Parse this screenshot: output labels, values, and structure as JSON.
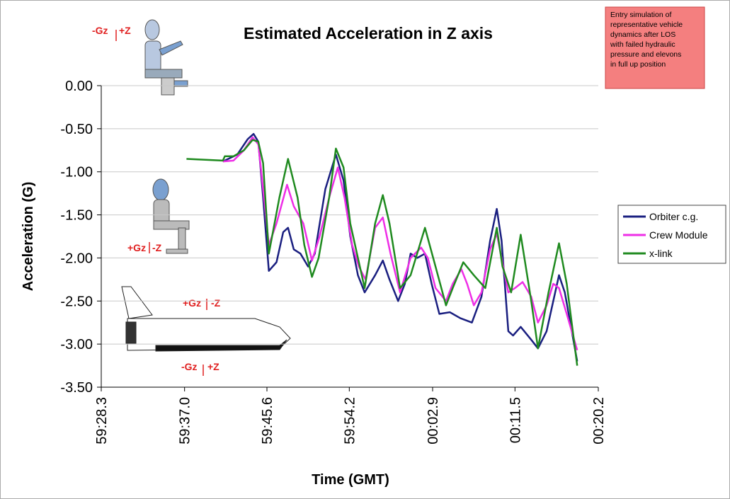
{
  "chart_data": {
    "type": "line",
    "title": "Estimated Acceleration in Z axis",
    "x_label": "Time (GMT)",
    "y_label": "Acceleration (G)",
    "xlim": [
      28.3,
      80.2
    ],
    "xticks": [
      {
        "value": 28.3,
        "label": "59:28.3"
      },
      {
        "value": 37.0,
        "label": "59:37.0"
      },
      {
        "value": 45.6,
        "label": "59:45.6"
      },
      {
        "value": 54.2,
        "label": "59:54.2"
      },
      {
        "value": 62.9,
        "label": "00:02.9"
      },
      {
        "value": 71.5,
        "label": "00:11.5"
      },
      {
        "value": 80.2,
        "label": "00:20.2"
      }
    ],
    "ylim": [
      -3.5,
      0
    ],
    "yticks": [
      {
        "value": 0,
        "label": "0.00"
      },
      {
        "value": -0.5,
        "label": "-0.50"
      },
      {
        "value": -1,
        "label": "-1.00"
      },
      {
        "value": -1.5,
        "label": "-1.50"
      },
      {
        "value": -2,
        "label": "-2.00"
      },
      {
        "value": -2.5,
        "label": "-2.50"
      },
      {
        "value": -3,
        "label": "-3.00"
      },
      {
        "value": -3.5,
        "label": "-3.50"
      }
    ],
    "grid": true,
    "legend": "right",
    "series": [
      {
        "name": "Orbiter c.g.",
        "color": "#1a1f80",
        "x": [
          41.0,
          42.5,
          43.6,
          44.2,
          44.7,
          45.2,
          45.8,
          46.6,
          47.3,
          47.8,
          48.4,
          49.1,
          49.9,
          50.6,
          51.7,
          52.8,
          53.6,
          54.3,
          55.1,
          55.8,
          56.9,
          57.7,
          58.4,
          59.3,
          60.0,
          60.6,
          61.3,
          62.1,
          62.8,
          63.6,
          64.7,
          65.8,
          67.0,
          68.0,
          68.9,
          69.6,
          70.1,
          70.8,
          71.3,
          72.1,
          73.2,
          73.9,
          74.8,
          75.5,
          76.1,
          76.7,
          78.0
        ],
        "values": [
          -0.88,
          -0.8,
          -0.62,
          -0.56,
          -0.65,
          -1.3,
          -2.15,
          -2.05,
          -1.7,
          -1.65,
          -1.9,
          -1.95,
          -2.1,
          -1.95,
          -1.2,
          -0.8,
          -1.1,
          -1.75,
          -2.2,
          -2.4,
          -2.2,
          -2.03,
          -2.25,
          -2.5,
          -2.3,
          -1.95,
          -2.0,
          -1.95,
          -2.3,
          -2.65,
          -2.63,
          -2.7,
          -2.75,
          -2.45,
          -1.8,
          -1.43,
          -1.8,
          -2.85,
          -2.9,
          -2.8,
          -2.95,
          -3.05,
          -2.85,
          -2.5,
          -2.2,
          -2.4,
          -3.2
        ]
      },
      {
        "name": "Crew Module",
        "color": "#ee2ee6",
        "x": [
          41.0,
          42.1,
          43.2,
          44.1,
          44.7,
          45.2,
          45.8,
          46.6,
          47.7,
          48.4,
          49.4,
          50.3,
          51.1,
          52.1,
          53.0,
          53.7,
          54.5,
          55.2,
          55.9,
          56.9,
          57.7,
          58.5,
          59.5,
          60.6,
          61.7,
          62.4,
          63.2,
          64.3,
          65.0,
          65.9,
          66.5,
          67.2,
          68.0,
          68.9,
          69.6,
          70.1,
          70.8,
          71.5,
          72.3,
          73.2,
          73.9,
          74.8,
          75.5,
          76.1,
          76.9,
          78.0
        ],
        "values": [
          -0.88,
          -0.87,
          -0.75,
          -0.6,
          -0.68,
          -1.2,
          -1.85,
          -1.6,
          -1.15,
          -1.4,
          -1.6,
          -2.03,
          -1.75,
          -1.3,
          -0.95,
          -1.3,
          -1.85,
          -2.1,
          -2.25,
          -1.65,
          -1.53,
          -1.95,
          -2.4,
          -2.0,
          -1.88,
          -2.0,
          -2.35,
          -2.5,
          -2.3,
          -2.13,
          -2.3,
          -2.55,
          -2.4,
          -1.9,
          -1.72,
          -2.0,
          -2.4,
          -2.35,
          -2.28,
          -2.45,
          -2.75,
          -2.55,
          -2.3,
          -2.35,
          -2.65,
          -3.07
        ]
      },
      {
        "name": "x-link",
        "color": "#1f8a1f",
        "x": [
          37.2,
          41.0,
          41.2,
          42.1,
          43.2,
          44.1,
          44.7,
          45.2,
          45.8,
          46.9,
          47.8,
          48.8,
          49.5,
          50.3,
          51.0,
          52.1,
          52.8,
          53.6,
          54.3,
          55.1,
          55.8,
          56.9,
          57.7,
          58.4,
          59.5,
          60.6,
          62.1,
          63.2,
          64.3,
          65.0,
          66.1,
          67.2,
          68.4,
          69.6,
          70.2,
          71.1,
          72.1,
          73.2,
          73.9,
          75.0,
          76.1,
          76.9,
          78.0
        ],
        "values": [
          -0.85,
          -0.87,
          -0.82,
          -0.82,
          -0.75,
          -0.63,
          -0.65,
          -0.9,
          -1.95,
          -1.3,
          -0.85,
          -1.3,
          -1.85,
          -2.22,
          -2.0,
          -1.3,
          -0.73,
          -0.95,
          -1.6,
          -2.0,
          -2.35,
          -1.6,
          -1.27,
          -1.6,
          -2.35,
          -2.2,
          -1.65,
          -2.1,
          -2.55,
          -2.35,
          -2.05,
          -2.2,
          -2.35,
          -1.65,
          -2.1,
          -2.4,
          -1.73,
          -2.5,
          -3.05,
          -2.4,
          -1.83,
          -2.3,
          -3.25
        ]
      }
    ],
    "annotation": [
      "Entry simulation of",
      "representative vehicle",
      "dynamics after LOS",
      "with failed hydraulic",
      "pressure and elevons",
      "in full up position"
    ],
    "force_labels": [
      "-Gz",
      "+Z",
      "+Gz",
      "-Z",
      "+Gz",
      "-Z",
      "-Gz",
      "+Z"
    ]
  }
}
